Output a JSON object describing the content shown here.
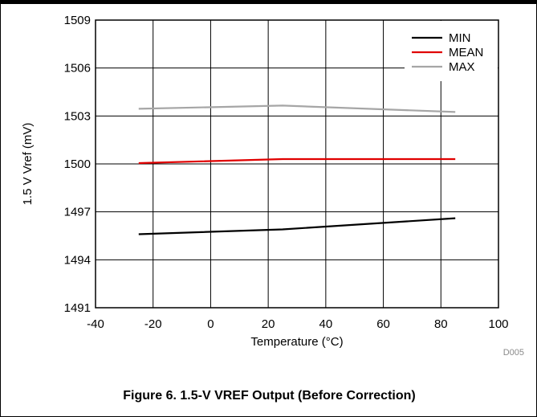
{
  "caption": "Figure 6. 1.5-V VREF Output (Before Correction)",
  "figure_code": "D005",
  "chart_data": {
    "type": "line",
    "xlabel": "Temperature (°C)",
    "ylabel": "1.5 V Vref (mV)",
    "xlim": [
      -40,
      100
    ],
    "ylim": [
      1491,
      1509
    ],
    "x_ticks": [
      -40,
      -20,
      0,
      20,
      40,
      60,
      80,
      100
    ],
    "y_ticks": [
      1491,
      1494,
      1497,
      1500,
      1503,
      1506,
      1509
    ],
    "grid": true,
    "legend_position": "top-right",
    "x": [
      -25,
      25,
      85
    ],
    "series": [
      {
        "name": "MIN",
        "color": "#000000",
        "values": [
          1495.6,
          1495.9,
          1496.6
        ]
      },
      {
        "name": "MEAN",
        "color": "#e00000",
        "values": [
          1500.05,
          1500.3,
          1500.3
        ]
      },
      {
        "name": "MAX",
        "color": "#a6a6a6",
        "values": [
          1503.45,
          1503.65,
          1503.25
        ]
      }
    ]
  }
}
